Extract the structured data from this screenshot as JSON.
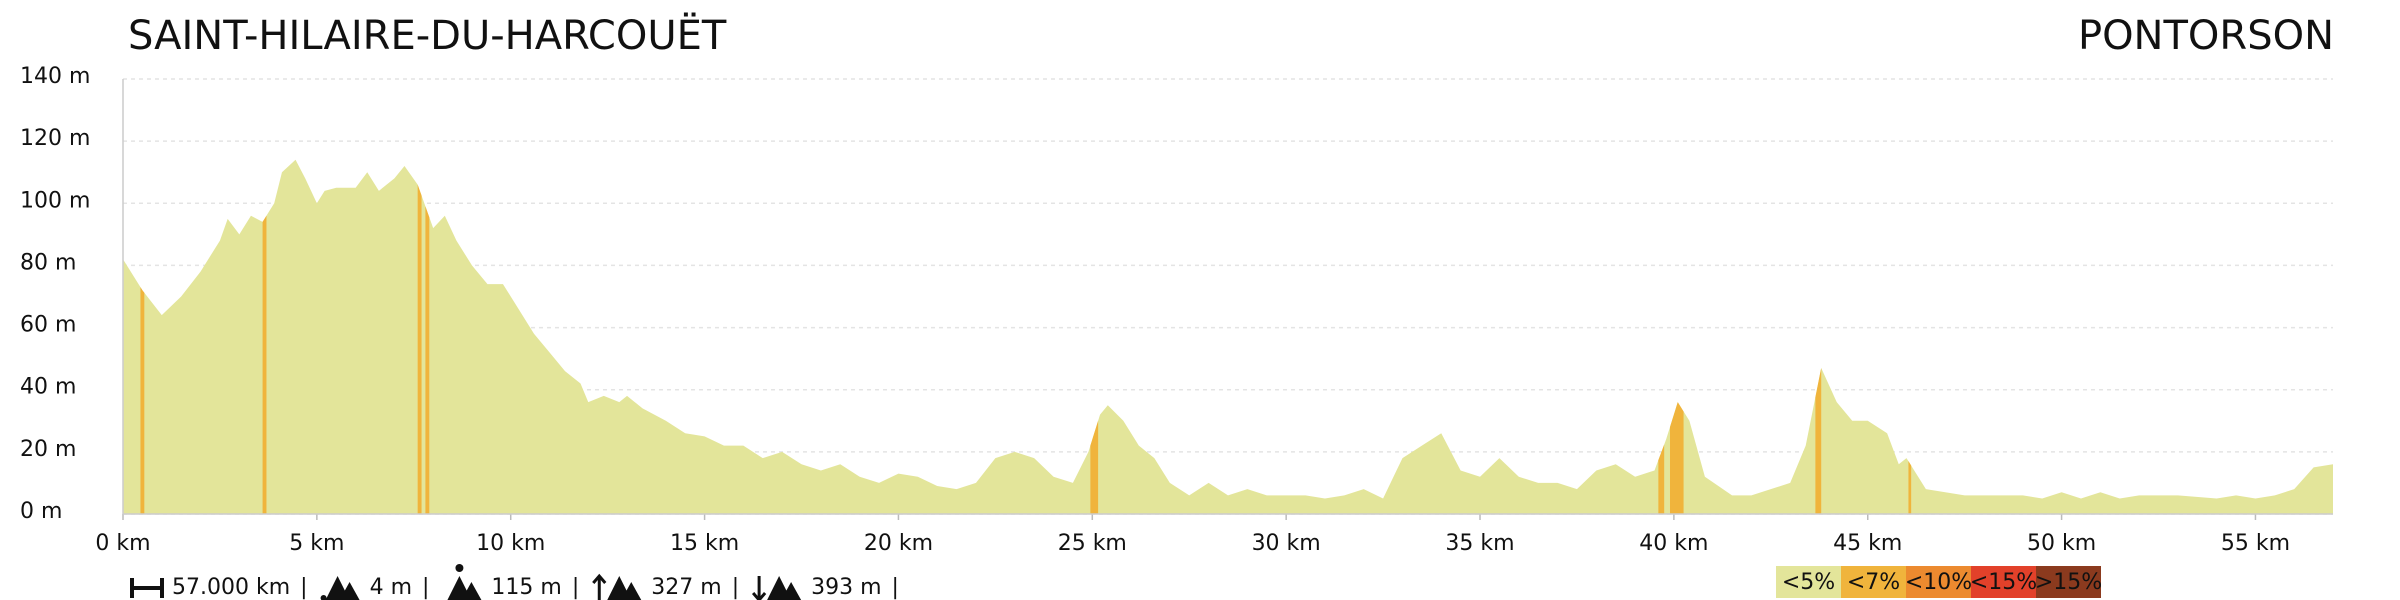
{
  "chart_data": {
    "type": "area",
    "start_title": "SAINT-HILAIRE-DU-HARCOUËT",
    "end_title": "PONTORSON",
    "x": [
      0,
      0.5,
      1,
      1.5,
      2,
      2.5,
      2.7,
      3,
      3.3,
      3.6,
      3.9,
      4.1,
      4.45,
      4.7,
      5,
      5.2,
      5.5,
      6,
      6.3,
      6.6,
      7,
      7.26,
      7.6,
      8,
      8.3,
      8.6,
      9,
      9.4,
      9.8,
      10.2,
      10.6,
      11,
      11.4,
      11.8,
      12,
      12.4,
      12.8,
      13,
      13.4,
      14,
      14.5,
      15,
      15.5,
      16,
      16.5,
      17,
      17.5,
      18,
      18.5,
      19,
      19.5,
      20,
      20.5,
      21,
      21.5,
      22,
      22.5,
      23,
      23.5,
      24,
      24.5,
      24.9,
      25.2,
      25.4,
      25.8,
      26.2,
      26.6,
      27,
      27.5,
      28,
      28.5,
      29,
      29.5,
      30,
      30.5,
      31,
      31.5,
      32,
      32.5,
      33,
      33.5,
      34,
      34.5,
      35,
      35.5,
      36,
      36.5,
      37,
      37.5,
      38,
      38.5,
      39,
      39.5,
      39.8,
      40.1,
      40.4,
      40.8,
      41.5,
      42,
      42.5,
      43,
      43.4,
      43.8,
      44.2,
      44.6,
      45,
      45.5,
      45.8,
      46,
      46.5,
      47,
      47.5,
      48,
      49,
      49.5,
      50,
      50.5,
      51,
      51.5,
      52,
      53,
      54,
      54.5,
      55,
      55.5,
      56,
      56.5,
      57
    ],
    "values": [
      82,
      72,
      64,
      70,
      78,
      88,
      95,
      90,
      96,
      94,
      100,
      110,
      114,
      108,
      100,
      104,
      105,
      105,
      110,
      104,
      108,
      112,
      106,
      92,
      96,
      88,
      80,
      74,
      74,
      66,
      58,
      52,
      46,
      42,
      36,
      38,
      36,
      38,
      34,
      30,
      26,
      25,
      22,
      22,
      18,
      20,
      16,
      14,
      16,
      12,
      10,
      13,
      12,
      9,
      8,
      10,
      18,
      20,
      18,
      12,
      10,
      20,
      32,
      35,
      30,
      22,
      18,
      10,
      6,
      10,
      6,
      8,
      6,
      6,
      6,
      5,
      6,
      8,
      5,
      18,
      22,
      26,
      14,
      12,
      18,
      12,
      10,
      10,
      8,
      14,
      16,
      12,
      14,
      24,
      36,
      30,
      12,
      6,
      6,
      8,
      10,
      22,
      47,
      36,
      30,
      30,
      26,
      16,
      18,
      8,
      7,
      6,
      6,
      6,
      5,
      7,
      5,
      7,
      5,
      6,
      6,
      5,
      6,
      5,
      6,
      8,
      15,
      16
    ],
    "color": "#e3e59a",
    "steep": {
      "color": "#f0b43c",
      "from": [
        0.45,
        3.6,
        7.6,
        7.8,
        24.95,
        39.6,
        39.9,
        43.65,
        46.05
      ],
      "to": [
        0.55,
        3.7,
        7.7,
        7.9,
        25.15,
        39.75,
        40.25,
        43.8,
        46.12
      ]
    },
    "xlim": [
      0,
      57
    ],
    "ylim": [
      0,
      140
    ],
    "xticks": [
      {
        "value": 0,
        "label": "0 km"
      },
      {
        "value": 5,
        "label": "5 km"
      },
      {
        "value": 10,
        "label": "10 km"
      },
      {
        "value": 15,
        "label": "15 km"
      },
      {
        "value": 20,
        "label": "20 km"
      },
      {
        "value": 25,
        "label": "25 km"
      },
      {
        "value": 30,
        "label": "30 km"
      },
      {
        "value": 35,
        "label": "35 km"
      },
      {
        "value": 40,
        "label": "40 km"
      },
      {
        "value": 45,
        "label": "45 km"
      },
      {
        "value": 50,
        "label": "50 km"
      },
      {
        "value": 55,
        "label": "55 km"
      }
    ],
    "yticks": [
      {
        "value": 0,
        "label": "0 m"
      },
      {
        "value": 20,
        "label": "20 m"
      },
      {
        "value": 40,
        "label": "40 m"
      },
      {
        "value": 60,
        "label": "60 m"
      },
      {
        "value": 80,
        "label": "80 m"
      },
      {
        "value": 100,
        "label": "100 m"
      },
      {
        "value": 120,
        "label": "120 m"
      },
      {
        "value": 140,
        "label": "140 m"
      }
    ],
    "grid": true,
    "stats": {
      "items": [
        "57.000 km",
        "4 m",
        "115 m",
        "327 m",
        "393 m"
      ],
      "separator": "|"
    },
    "grade_legend": {
      "labels": [
        "<5%",
        "<7%",
        "<10%",
        "<15%",
        ">15%"
      ],
      "colors": [
        "#e3e59a",
        "#f0b43c",
        "#ec8a2f",
        "#e2412a",
        "#8b3a1e"
      ]
    }
  }
}
